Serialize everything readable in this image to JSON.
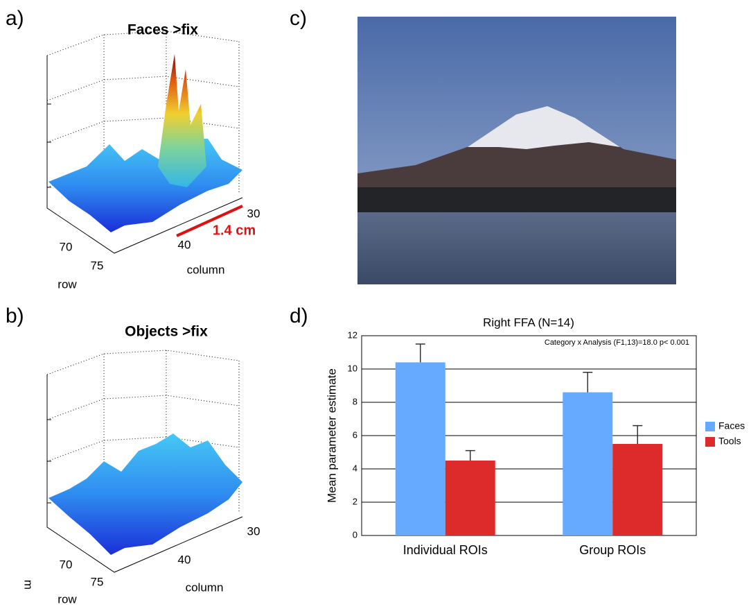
{
  "panel_a": {
    "label": "a)",
    "title": "Faces >fix",
    "row_label": "row",
    "column_label": "column",
    "row_ticks": [
      70,
      75
    ],
    "column_ticks": [
      40,
      30
    ],
    "scale_label": "1.4 cm"
  },
  "panel_b": {
    "label": "b)",
    "title": "Objects >fix",
    "row_label": "row",
    "column_label": "column",
    "row_ticks": [
      70,
      75
    ],
    "column_ticks": [
      40,
      30
    ],
    "stray_mark": "m"
  },
  "panel_c": {
    "label": "c)"
  },
  "chart_data": {
    "type": "bar",
    "panel_label": "d)",
    "title": "Right FFA (N=14)",
    "annotation": "Category x Analysis (F1,13)=18.0 p< 0.001",
    "y_label": "Mean parameter estimate",
    "categories": [
      "Individual ROIs",
      "Group ROIs"
    ],
    "series": [
      {
        "name": "Faces",
        "color": "#66aaff",
        "values": [
          10.4,
          8.6
        ],
        "errors": [
          1.1,
          1.2
        ]
      },
      {
        "name": "Tools",
        "color": "#dd2a2a",
        "values": [
          4.5,
          5.5
        ],
        "errors": [
          0.6,
          1.1
        ]
      }
    ],
    "ylim": [
      0,
      12
    ],
    "yticks": [
      0,
      2,
      4,
      6,
      8,
      10,
      12
    ],
    "grid": true,
    "legend": "right"
  }
}
